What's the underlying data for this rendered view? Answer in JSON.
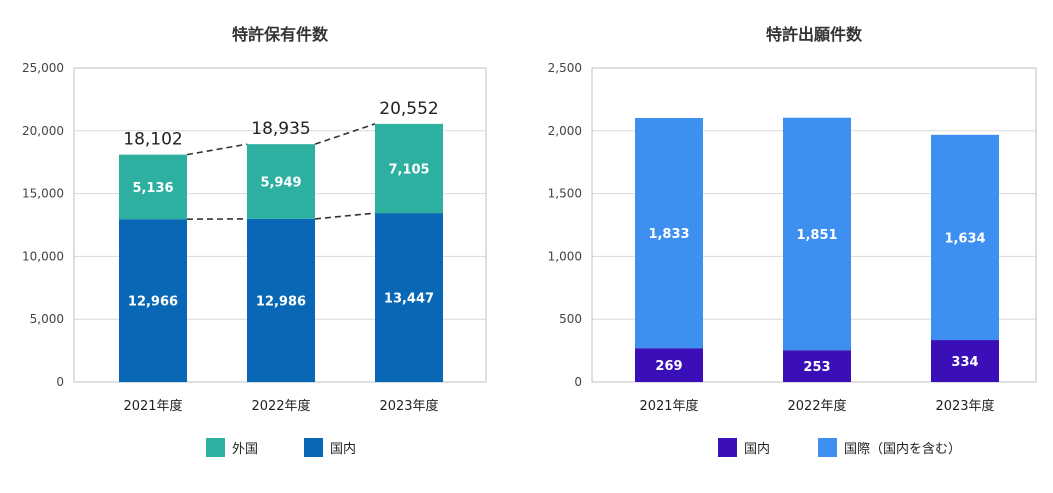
{
  "chart_data": [
    {
      "type": "bar",
      "title": "特許保有件数",
      "categories": [
        "2021年度",
        "2022年度",
        "2023年度"
      ],
      "ylim": [
        0,
        25000
      ],
      "yticks": [
        0,
        5000,
        10000,
        15000,
        20000,
        25000
      ],
      "ytick_labels": [
        "0",
        "5,000",
        "10,000",
        "15,000",
        "20,000",
        "25,000"
      ],
      "series": [
        {
          "name": "国内",
          "values": [
            12966,
            12986,
            13447
          ],
          "labels": [
            "12,966",
            "12,986",
            "13,447"
          ],
          "color": "#0868b5"
        },
        {
          "name": "外国",
          "values": [
            5136,
            5949,
            7105
          ],
          "labels": [
            "5,136",
            "5,949",
            "7,105"
          ],
          "color": "#2db0a0"
        }
      ],
      "totals": [
        18102,
        18935,
        20552
      ],
      "total_labels": [
        "18,102",
        "18,935",
        "20,552"
      ],
      "legend": [
        {
          "name": "外国",
          "color": "#2db0a0"
        },
        {
          "name": "国内",
          "color": "#0868b5"
        }
      ],
      "stacked": true,
      "connector_lines": true,
      "grid": true
    },
    {
      "type": "bar",
      "title": "特許出願件数",
      "categories": [
        "2021年度",
        "2022年度",
        "2023年度"
      ],
      "ylim": [
        0,
        2500
      ],
      "yticks": [
        0,
        500,
        1000,
        1500,
        2000,
        2500
      ],
      "ytick_labels": [
        "0",
        "500",
        "1,000",
        "1,500",
        "2,000",
        "2,500"
      ],
      "series": [
        {
          "name": "国内",
          "values": [
            269,
            253,
            334
          ],
          "labels": [
            "269",
            "253",
            "334"
          ],
          "color": "#3a0fb8"
        },
        {
          "name": "国際（国内を含む）",
          "values": [
            1833,
            1851,
            1634
          ],
          "labels": [
            "1,833",
            "1,851",
            "1,634"
          ],
          "color": "#3d8ff0"
        }
      ],
      "legend": [
        {
          "name": "国内",
          "color": "#3a0fb8"
        },
        {
          "name": "国際（国内を含む）",
          "color": "#3d8ff0"
        }
      ],
      "stacked": true,
      "grid": true
    }
  ]
}
